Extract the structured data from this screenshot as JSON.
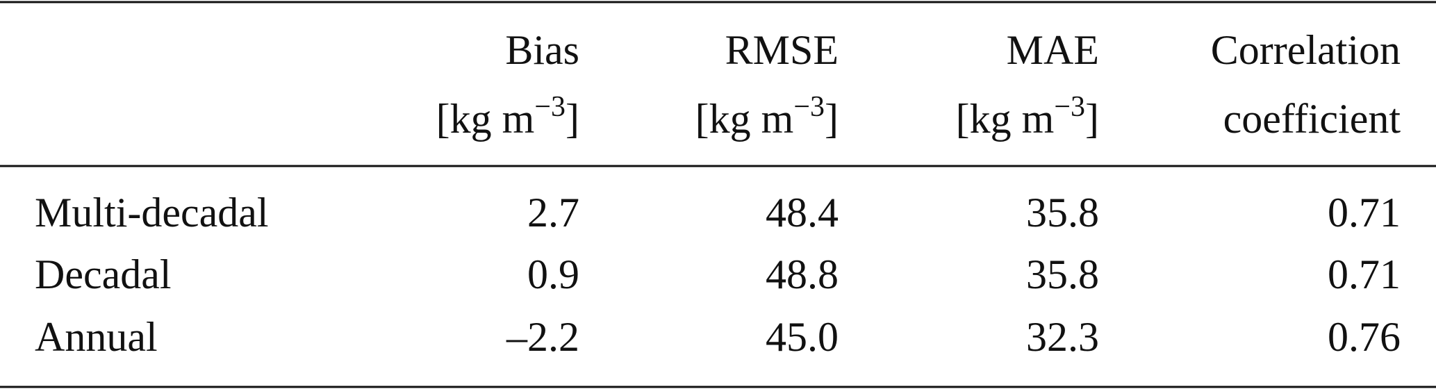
{
  "table": {
    "columns": [
      {
        "line1": "Bias",
        "line2": [
          "[kg m",
          "−3",
          "]"
        ]
      },
      {
        "line1": "RMSE",
        "line2": [
          "[kg m",
          "−3",
          "]"
        ]
      },
      {
        "line1": "MAE",
        "line2": [
          "[kg m",
          "−3",
          "]"
        ]
      },
      {
        "line1": "Correlation",
        "line2": [
          "coefficient"
        ]
      }
    ],
    "rows": [
      [
        "Multi-decadal",
        "2.7",
        "48.4",
        "35.8",
        "0.71"
      ],
      [
        "Decadal",
        "0.9",
        "48.8",
        "35.8",
        "0.71"
      ],
      [
        "Annual",
        "–2.2",
        "45.0",
        "32.3",
        "0.76"
      ]
    ]
  }
}
